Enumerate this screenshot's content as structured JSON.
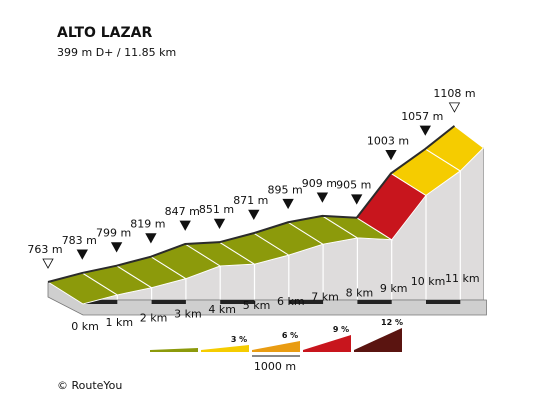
{
  "title": "ALTO LAZAR",
  "subtitle": "399 m D+ / 11.85 km",
  "credit": "© RouteYou",
  "colors": {
    "flat": "#8c9a0b",
    "g3": "#f5cc00",
    "g6": "#e99c12",
    "g9": "#c8151d",
    "g12": "#5a1410",
    "side": "#dedcdc",
    "base": "#cfcfcf"
  },
  "legend": {
    "items": [
      {
        "label": "",
        "color": "#8c9a0b"
      },
      {
        "label": "3 %",
        "color": "#f5cc00"
      },
      {
        "label": "6 %",
        "color": "#e99c12"
      },
      {
        "label": "9 %",
        "color": "#c8151d"
      },
      {
        "label": "12 %",
        "color": "#5a1410"
      }
    ],
    "scale_label": "1000 m"
  },
  "chart_data": {
    "type": "area",
    "title": "ALTO LAZAR",
    "subtitle": "399 m D+ / 11.85 km",
    "xlabel": "",
    "ylabel": "",
    "x_unit": "km",
    "y_unit": "m",
    "x_ticks": [
      "0 km",
      "1 km",
      "2 km",
      "3 km",
      "4 km",
      "5 km",
      "6 km",
      "7 km",
      "8 km",
      "9 km",
      "10 km",
      "11 km"
    ],
    "points": [
      {
        "x": 0,
        "y": 763,
        "label": "763 m",
        "marker": "start"
      },
      {
        "x": 1,
        "y": 783,
        "label": "783 m",
        "marker": "km"
      },
      {
        "x": 2,
        "y": 799,
        "label": "799 m",
        "marker": "km"
      },
      {
        "x": 3,
        "y": 819,
        "label": "819 m",
        "marker": "km"
      },
      {
        "x": 4,
        "y": 847,
        "label": "847 m",
        "marker": "km"
      },
      {
        "x": 5,
        "y": 851,
        "label": "851 m",
        "marker": "km"
      },
      {
        "x": 6,
        "y": 871,
        "label": "871 m",
        "marker": "km"
      },
      {
        "x": 7,
        "y": 895,
        "label": "895 m",
        "marker": "km"
      },
      {
        "x": 8,
        "y": 909,
        "label": "909 m",
        "marker": "km"
      },
      {
        "x": 9,
        "y": 905,
        "label": "905 m",
        "marker": "km"
      },
      {
        "x": 10,
        "y": 1003,
        "label": "1003 m",
        "marker": "km"
      },
      {
        "x": 11,
        "y": 1057,
        "label": "1057 m",
        "marker": "km"
      },
      {
        "x": 11.85,
        "y": 1108,
        "label": "1108 m",
        "marker": "finish"
      }
    ],
    "segment_colors": [
      "flat",
      "flat",
      "flat",
      "flat",
      "flat",
      "flat",
      "flat",
      "flat",
      "flat",
      "g9",
      "g3",
      "g3"
    ],
    "legend_gradients": [
      "",
      "3 %",
      "6 %",
      "9 %",
      "12 %"
    ],
    "scale_bar": "1000 m"
  }
}
